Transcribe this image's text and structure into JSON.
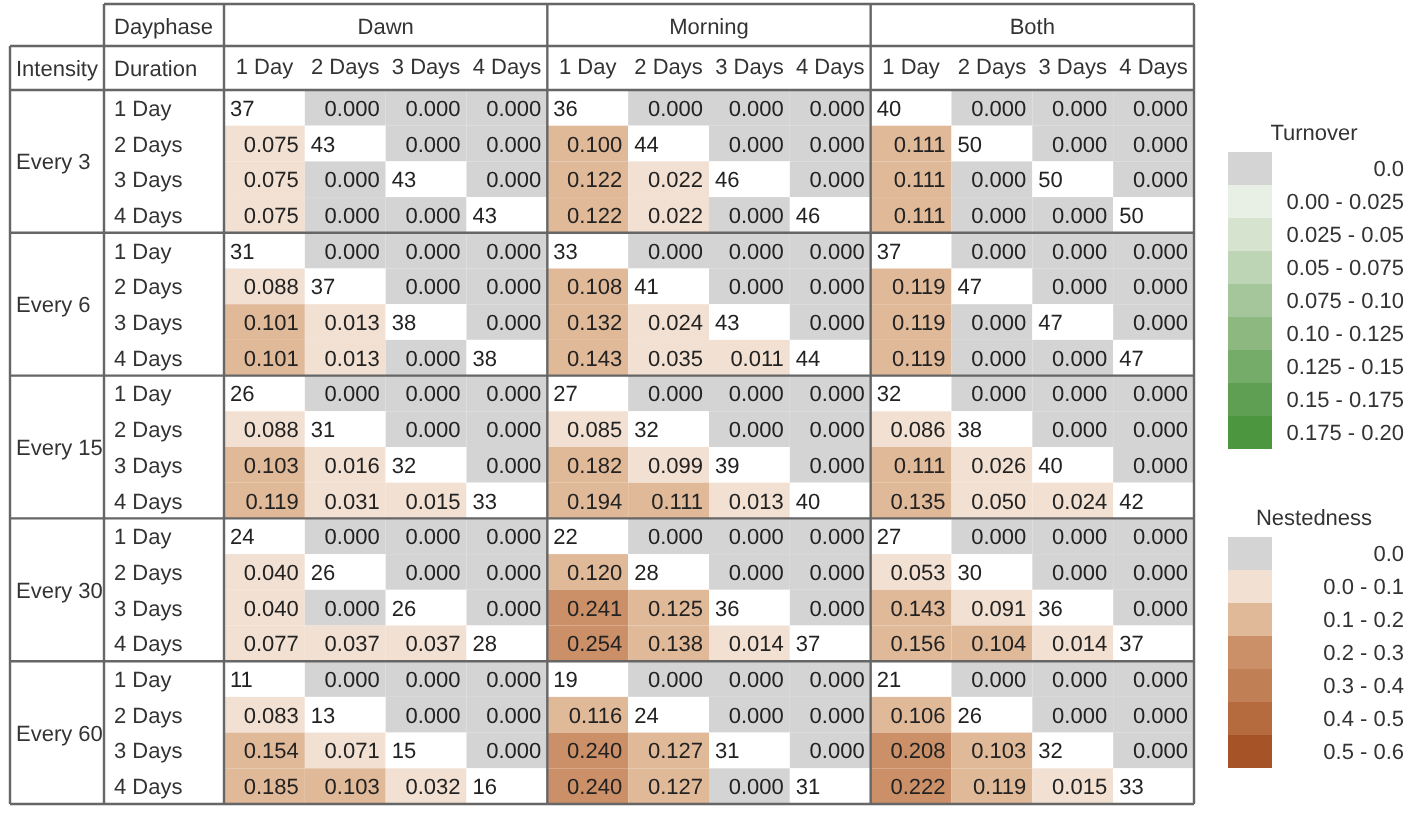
{
  "chart_data": {
    "type": "heatmap",
    "xlabel": "Dayphase",
    "ylabel": "Intensity",
    "categories": [
      "1 Day",
      "2 Days",
      "3 Days",
      "4 Days",
      "1 Day",
      "2 Days",
      "3 Days",
      "4 Days",
      "1 Day",
      "2 Days",
      "3 Days",
      "4 Days"
    ],
    "y_categories": [
      "1 Day",
      "2 Days",
      "3 Days",
      "4 Days",
      "1 Day",
      "2 Days",
      "3 Days",
      "4 Days",
      "1 Day",
      "2 Days",
      "3 Days",
      "4 Days",
      "1 Day",
      "2 Days",
      "3 Days",
      "4 Days",
      "1 Day",
      "2 Days",
      "3 Days",
      "4 Days"
    ],
    "annotations": [
      "Dawn",
      "Morning",
      "Both",
      "Every 3",
      "Every 6",
      "Every 15",
      "Every 30",
      "Every 60",
      "Duration",
      "Turnover",
      "0.0",
      "0.00 - 0.025",
      "0.025 - 0.05",
      "0.05 - 0.075",
      "0.075 - 0.10",
      "0.10 - 0.125",
      "0.125 - 0.15",
      "0.15 - 0.175",
      "0.175 - 0.20",
      "Nestedness",
      "0.0",
      "0.0 - 0.1",
      "0.1 - 0.2",
      "0.2 - 0.3",
      "0.3 - 0.4",
      "0.4 - 0.5",
      "0.5 - 0.6"
    ],
    "data_labels": true,
    "cells": [
      [
        37,
        0,
        0,
        0,
        36,
        0,
        0,
        0,
        40,
        0,
        0,
        0
      ],
      [
        0.075,
        43,
        0,
        0,
        0.1,
        44,
        0,
        0,
        0.111,
        50,
        0,
        0
      ],
      [
        0.075,
        0,
        43,
        0,
        0.122,
        0.022,
        46,
        0,
        0.111,
        0,
        50,
        0
      ],
      [
        0.075,
        0,
        0,
        43,
        0.122,
        0.022,
        0,
        46,
        0.111,
        0,
        0,
        50
      ],
      [
        31,
        0,
        0,
        0,
        33,
        0,
        0,
        0,
        37,
        0,
        0,
        0
      ],
      [
        0.088,
        37,
        0,
        0,
        0.108,
        41,
        0,
        0,
        0.119,
        47,
        0,
        0
      ],
      [
        0.101,
        0.013,
        38,
        0,
        0.132,
        0.024,
        43,
        0,
        0.119,
        0,
        47,
        0
      ],
      [
        0.101,
        0.013,
        0,
        38,
        0.143,
        0.035,
        0.011,
        44,
        0.119,
        0,
        0,
        47
      ],
      [
        26,
        0,
        0,
        0,
        27,
        0,
        0,
        0,
        32,
        0,
        0,
        0
      ],
      [
        0.088,
        31,
        0,
        0,
        0.085,
        32,
        0,
        0,
        0.086,
        38,
        0,
        0
      ],
      [
        0.103,
        0.016,
        32,
        0,
        0.182,
        0.099,
        39,
        0,
        0.111,
        0.026,
        40,
        0
      ],
      [
        0.119,
        0.031,
        0.015,
        33,
        0.194,
        0.111,
        0.013,
        40,
        0.135,
        0.05,
        0.024,
        42
      ],
      [
        24,
        0,
        0,
        0,
        22,
        0,
        0,
        0,
        27,
        0,
        0,
        0
      ],
      [
        0.04,
        26,
        0,
        0,
        0.12,
        28,
        0,
        0,
        0.053,
        30,
        0,
        0
      ],
      [
        0.04,
        0,
        26,
        0,
        0.241,
        0.125,
        36,
        0,
        0.143,
        0.091,
        36,
        0
      ],
      [
        0.077,
        0.037,
        0.037,
        28,
        0.254,
        0.138,
        0.014,
        37,
        0.156,
        0.104,
        0.014,
        37
      ],
      [
        11,
        0,
        0,
        0,
        19,
        0,
        0,
        0,
        21,
        0,
        0,
        0
      ],
      [
        0.083,
        13,
        0,
        0,
        0.116,
        24,
        0,
        0,
        0.106,
        26,
        0,
        0
      ],
      [
        0.154,
        0.071,
        15,
        0,
        0.24,
        0.127,
        31,
        0,
        0.208,
        0.103,
        32,
        0
      ],
      [
        0.185,
        0.103,
        0.032,
        16,
        0.24,
        0.127,
        0,
        31,
        0.222,
        0.119,
        0.015,
        33
      ]
    ],
    "cell_labels": [
      [
        "37",
        "0.000",
        "0.000",
        "0.000",
        "36",
        "0.000",
        "0.000",
        "0.000",
        "40",
        "0.000",
        "0.000",
        "0.000"
      ],
      [
        "0.075",
        "43",
        "0.000",
        "0.000",
        "0.100",
        "44",
        "0.000",
        "0.000",
        "0.111",
        "50",
        "0.000",
        "0.000"
      ],
      [
        "0.075",
        "0.000",
        "43",
        "0.000",
        "0.122",
        "0.022",
        "46",
        "0.000",
        "0.111",
        "0.000",
        "50",
        "0.000"
      ],
      [
        "0.075",
        "0.000",
        "0.000",
        "43",
        "0.122",
        "0.022",
        "0.000",
        "46",
        "0.111",
        "0.000",
        "0.000",
        "50"
      ],
      [
        "31",
        "0.000",
        "0.000",
        "0.000",
        "33",
        "0.000",
        "0.000",
        "0.000",
        "37",
        "0.000",
        "0.000",
        "0.000"
      ],
      [
        "0.088",
        "37",
        "0.000",
        "0.000",
        "0.108",
        "41",
        "0.000",
        "0.000",
        "0.119",
        "47",
        "0.000",
        "0.000"
      ],
      [
        "0.101",
        "0.013",
        "38",
        "0.000",
        "0.132",
        "0.024",
        "43",
        "0.000",
        "0.119",
        "0.000",
        "47",
        "0.000"
      ],
      [
        "0.101",
        "0.013",
        "0.000",
        "38",
        "0.143",
        "0.035",
        "0.011",
        "44",
        "0.119",
        "0.000",
        "0.000",
        "47"
      ],
      [
        "26",
        "0.000",
        "0.000",
        "0.000",
        "27",
        "0.000",
        "0.000",
        "0.000",
        "32",
        "0.000",
        "0.000",
        "0.000"
      ],
      [
        "0.088",
        "31",
        "0.000",
        "0.000",
        "0.085",
        "32",
        "0.000",
        "0.000",
        "0.086",
        "38",
        "0.000",
        "0.000"
      ],
      [
        "0.103",
        "0.016",
        "32",
        "0.000",
        "0.182",
        "0.099",
        "39",
        "0.000",
        "0.111",
        "0.026",
        "40",
        "0.000"
      ],
      [
        "0.119",
        "0.031",
        "0.015",
        "33",
        "0.194",
        "0.111",
        "0.013",
        "40",
        "0.135",
        "0.050",
        "0.024",
        "42"
      ],
      [
        "24",
        "0.000",
        "0.000",
        "0.000",
        "22",
        "0.000",
        "0.000",
        "0.000",
        "27",
        "0.000",
        "0.000",
        "0.000"
      ],
      [
        "0.040",
        "26",
        "0.000",
        "0.000",
        "0.120",
        "28",
        "0.000",
        "0.000",
        "0.053",
        "30",
        "0.000",
        "0.000"
      ],
      [
        "0.040",
        "0.000",
        "26",
        "0.000",
        "0.241",
        "0.125",
        "36",
        "0.000",
        "0.143",
        "0.091",
        "36",
        "0.000"
      ],
      [
        "0.077",
        "0.037",
        "0.037",
        "28",
        "0.254",
        "0.138",
        "0.014",
        "37",
        "0.156",
        "0.104",
        "0.014",
        "37"
      ],
      [
        "11",
        "0.000",
        "0.000",
        "0.000",
        "19",
        "0.000",
        "0.000",
        "0.000",
        "21",
        "0.000",
        "0.000",
        "0.000"
      ],
      [
        "0.083",
        "13",
        "0.000",
        "0.000",
        "0.116",
        "24",
        "0.000",
        "0.000",
        "0.106",
        "26",
        "0.000",
        "0.000"
      ],
      [
        "0.154",
        "0.071",
        "15",
        "0.000",
        "0.240",
        "0.127",
        "31",
        "0.000",
        "0.208",
        "0.103",
        "32",
        "0.000"
      ],
      [
        "0.185",
        "0.103",
        "0.032",
        "16",
        "0.240",
        "0.127",
        "0.000",
        "31",
        "0.222",
        "0.119",
        "0.015",
        "33"
      ]
    ],
    "colors": [
      [
        "#ffffff",
        "#d4d4d4",
        "#d4d4d4",
        "#d4d4d4",
        "#ffffff",
        "#d4d4d4",
        "#d4d4d4",
        "#d4d4d4",
        "#ffffff",
        "#d4d4d4",
        "#d4d4d4",
        "#d4d4d4"
      ],
      [
        "#f2e0d2",
        "#ffffff",
        "#d4d4d4",
        "#d4d4d4",
        "#e0b999",
        "#ffffff",
        "#d4d4d4",
        "#d4d4d4",
        "#e0b999",
        "#ffffff",
        "#d4d4d4",
        "#d4d4d4"
      ],
      [
        "#f2e0d2",
        "#d4d4d4",
        "#ffffff",
        "#d4d4d4",
        "#e0b999",
        "#f2e0d2",
        "#ffffff",
        "#d4d4d4",
        "#e0b999",
        "#d4d4d4",
        "#ffffff",
        "#d4d4d4"
      ],
      [
        "#f2e0d2",
        "#d4d4d4",
        "#d4d4d4",
        "#ffffff",
        "#e0b999",
        "#f2e0d2",
        "#d4d4d4",
        "#ffffff",
        "#e0b999",
        "#d4d4d4",
        "#d4d4d4",
        "#ffffff"
      ],
      [
        "#ffffff",
        "#d4d4d4",
        "#d4d4d4",
        "#d4d4d4",
        "#ffffff",
        "#d4d4d4",
        "#d4d4d4",
        "#d4d4d4",
        "#ffffff",
        "#d4d4d4",
        "#d4d4d4",
        "#d4d4d4"
      ],
      [
        "#f2e0d2",
        "#ffffff",
        "#d4d4d4",
        "#d4d4d4",
        "#e0b999",
        "#ffffff",
        "#d4d4d4",
        "#d4d4d4",
        "#e0b999",
        "#ffffff",
        "#d4d4d4",
        "#d4d4d4"
      ],
      [
        "#e0b999",
        "#f2e0d2",
        "#ffffff",
        "#d4d4d4",
        "#e0b999",
        "#f2e0d2",
        "#ffffff",
        "#d4d4d4",
        "#e0b999",
        "#d4d4d4",
        "#ffffff",
        "#d4d4d4"
      ],
      [
        "#e0b999",
        "#f2e0d2",
        "#d4d4d4",
        "#ffffff",
        "#e0b999",
        "#f2e0d2",
        "#f2e0d2",
        "#ffffff",
        "#e0b999",
        "#d4d4d4",
        "#d4d4d4",
        "#ffffff"
      ],
      [
        "#ffffff",
        "#d4d4d4",
        "#d4d4d4",
        "#d4d4d4",
        "#ffffff",
        "#d4d4d4",
        "#d4d4d4",
        "#d4d4d4",
        "#ffffff",
        "#d4d4d4",
        "#d4d4d4",
        "#d4d4d4"
      ],
      [
        "#f2e0d2",
        "#ffffff",
        "#d4d4d4",
        "#d4d4d4",
        "#f2e0d2",
        "#ffffff",
        "#d4d4d4",
        "#d4d4d4",
        "#f2e0d2",
        "#ffffff",
        "#d4d4d4",
        "#d4d4d4"
      ],
      [
        "#e0b999",
        "#f2e0d2",
        "#ffffff",
        "#d4d4d4",
        "#e0b999",
        "#f2e0d2",
        "#ffffff",
        "#d4d4d4",
        "#e0b999",
        "#f2e0d2",
        "#ffffff",
        "#d4d4d4"
      ],
      [
        "#e0b999",
        "#f2e0d2",
        "#f2e0d2",
        "#ffffff",
        "#e0b999",
        "#e0b999",
        "#f2e0d2",
        "#ffffff",
        "#e0b999",
        "#f2e0d2",
        "#f2e0d2",
        "#ffffff"
      ],
      [
        "#ffffff",
        "#d4d4d4",
        "#d4d4d4",
        "#d4d4d4",
        "#ffffff",
        "#d4d4d4",
        "#d4d4d4",
        "#d4d4d4",
        "#ffffff",
        "#d4d4d4",
        "#d4d4d4",
        "#d4d4d4"
      ],
      [
        "#f2e0d2",
        "#ffffff",
        "#d4d4d4",
        "#d4d4d4",
        "#e0b999",
        "#ffffff",
        "#d4d4d4",
        "#d4d4d4",
        "#f2e0d2",
        "#ffffff",
        "#d4d4d4",
        "#d4d4d4"
      ],
      [
        "#f2e0d2",
        "#d4d4d4",
        "#ffffff",
        "#d4d4d4",
        "#cc9068",
        "#e0b999",
        "#ffffff",
        "#d4d4d4",
        "#e0b999",
        "#f2e0d2",
        "#ffffff",
        "#d4d4d4"
      ],
      [
        "#f2e0d2",
        "#f2e0d2",
        "#f2e0d2",
        "#ffffff",
        "#cc9068",
        "#e0b999",
        "#f2e0d2",
        "#ffffff",
        "#e0b999",
        "#e0b999",
        "#f2e0d2",
        "#ffffff"
      ],
      [
        "#ffffff",
        "#d4d4d4",
        "#d4d4d4",
        "#d4d4d4",
        "#ffffff",
        "#d4d4d4",
        "#d4d4d4",
        "#d4d4d4",
        "#ffffff",
        "#d4d4d4",
        "#d4d4d4",
        "#d4d4d4"
      ],
      [
        "#f2e0d2",
        "#ffffff",
        "#d4d4d4",
        "#d4d4d4",
        "#e0b999",
        "#ffffff",
        "#d4d4d4",
        "#d4d4d4",
        "#e0b999",
        "#ffffff",
        "#d4d4d4",
        "#d4d4d4"
      ],
      [
        "#e0b999",
        "#f2e0d2",
        "#ffffff",
        "#d4d4d4",
        "#cc9068",
        "#e0b999",
        "#ffffff",
        "#d4d4d4",
        "#cc9068",
        "#e0b999",
        "#ffffff",
        "#d4d4d4"
      ],
      [
        "#e0b999",
        "#e0b999",
        "#f2e0d2",
        "#ffffff",
        "#cc9068",
        "#e0b999",
        "#d4d4d4",
        "#ffffff",
        "#cc9068",
        "#e0b999",
        "#f2e0d2",
        "#ffffff"
      ]
    ]
  }
}
